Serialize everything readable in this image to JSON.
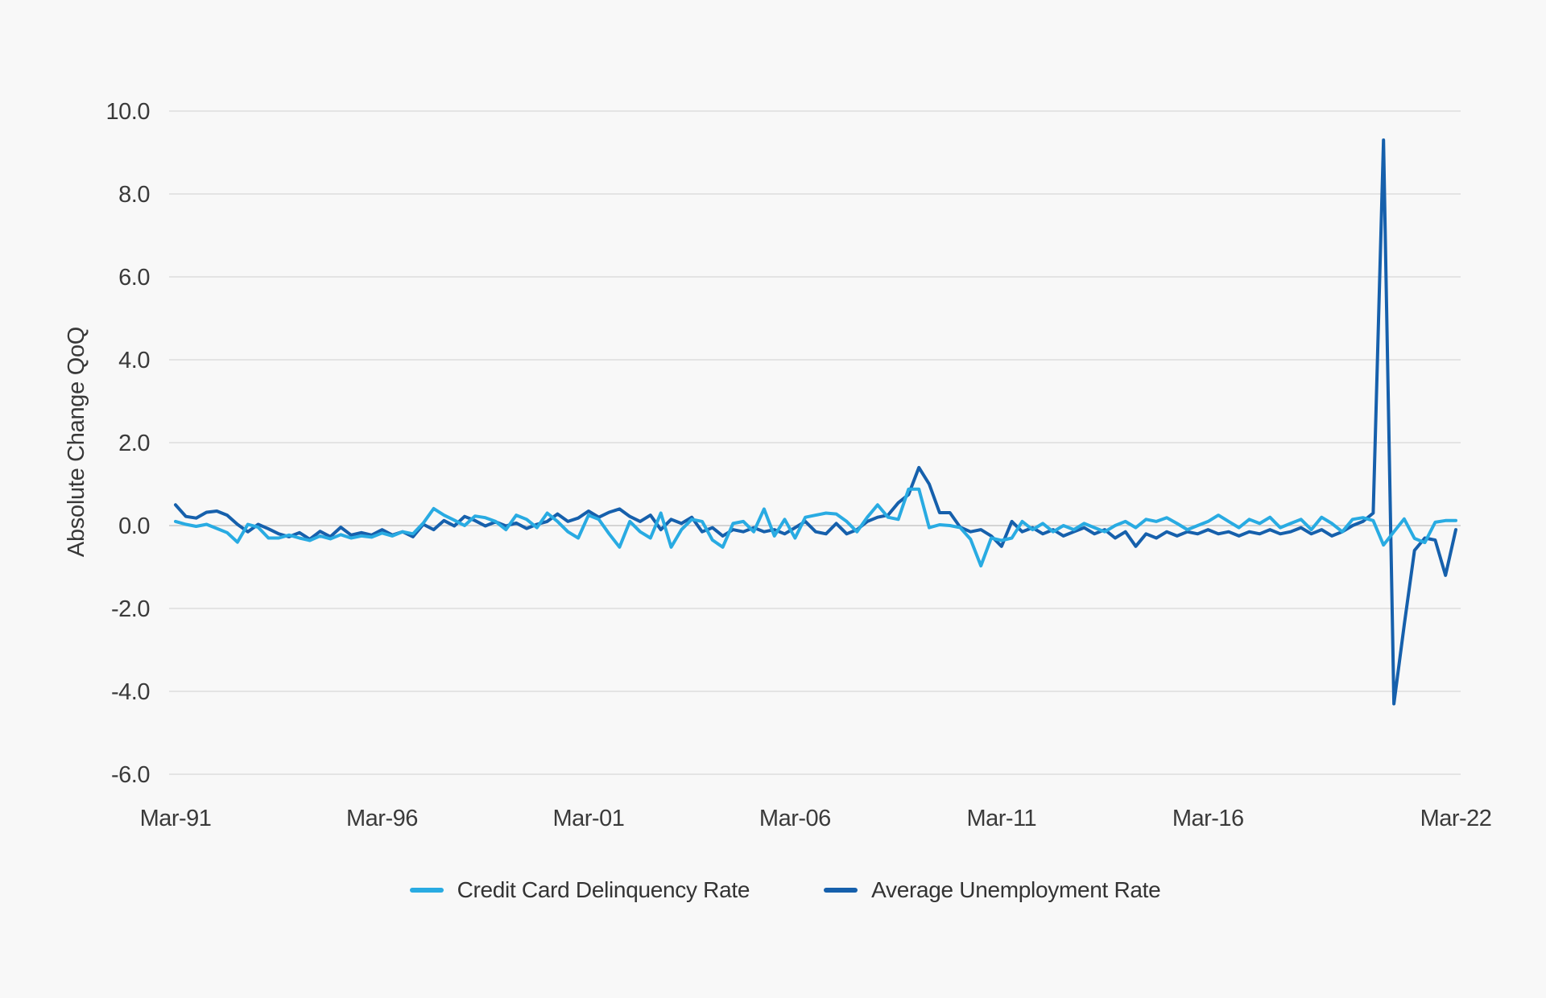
{
  "chart_data": {
    "type": "line",
    "title": "",
    "ylabel": "Absolute Change QoQ",
    "xlabel": "",
    "x_frequency": "quarterly",
    "x_start": "Mar-91",
    "x_end": "Mar-22",
    "x_points": 125,
    "x_ticks": [
      {
        "index": 0,
        "label": "Mar-91"
      },
      {
        "index": 20,
        "label": "Mar-96"
      },
      {
        "index": 40,
        "label": "Mar-01"
      },
      {
        "index": 60,
        "label": "Mar-06"
      },
      {
        "index": 80,
        "label": "Mar-11"
      },
      {
        "index": 100,
        "label": "Mar-16"
      },
      {
        "index": 124,
        "label": "Mar-22"
      }
    ],
    "y_ticks": [
      {
        "label": "10.0",
        "value": 10
      },
      {
        "label": "8.0",
        "value": 8
      },
      {
        "label": "6.0",
        "value": 6
      },
      {
        "label": "4.0",
        "value": 4
      },
      {
        "label": "2.0",
        "value": 2
      },
      {
        "label": "0.0",
        "value": 0
      },
      {
        "label": "-2.0",
        "value": -2
      },
      {
        "label": "-4.0",
        "value": -4
      },
      {
        "label": "-6.0",
        "value": -6
      }
    ],
    "ylim": [
      -6,
      10
    ],
    "grid": "horizontal-only",
    "legend_position": "bottom-center",
    "colors": {
      "background": "#F8F8F8",
      "gridline": "#DDDDDD",
      "zero_line": "#C8C8C8",
      "text": "#3A3A3A"
    },
    "series": [
      {
        "name": "Credit Card Delinquency Rate",
        "color": "#29ABE2",
        "values": [
          0.1,
          0.03,
          -0.02,
          0.03,
          -0.07,
          -0.17,
          -0.4,
          0.03,
          -0.04,
          -0.3,
          -0.3,
          -0.23,
          -0.3,
          -0.36,
          -0.25,
          -0.32,
          -0.22,
          -0.3,
          -0.25,
          -0.28,
          -0.18,
          -0.25,
          -0.15,
          -0.2,
          0.06,
          0.41,
          0.25,
          0.13,
          0.0,
          0.23,
          0.19,
          0.1,
          -0.1,
          0.25,
          0.15,
          -0.05,
          0.3,
          0.1,
          -0.15,
          -0.3,
          0.25,
          0.15,
          -0.2,
          -0.52,
          0.1,
          -0.15,
          -0.3,
          0.3,
          -0.52,
          -0.1,
          0.15,
          0.1,
          -0.35,
          -0.52,
          0.05,
          0.1,
          -0.15,
          0.4,
          -0.25,
          0.15,
          -0.3,
          0.2,
          0.25,
          0.3,
          0.28,
          0.1,
          -0.15,
          0.2,
          0.5,
          0.2,
          0.15,
          0.88,
          0.88,
          -0.05,
          0.02,
          0.0,
          -0.05,
          -0.33,
          -0.97,
          -0.3,
          -0.36,
          -0.3,
          0.1,
          -0.1,
          0.05,
          -0.15,
          0.0,
          -0.1,
          0.05,
          -0.05,
          -0.15,
          0.0,
          0.1,
          -0.05,
          0.15,
          0.1,
          0.19,
          0.05,
          -0.1,
          0.0,
          0.1,
          0.25,
          0.1,
          -0.05,
          0.15,
          0.05,
          0.2,
          -0.05,
          0.05,
          0.15,
          -0.1,
          0.2,
          0.05,
          -0.15,
          0.15,
          0.19,
          0.12,
          -0.47,
          -0.15,
          0.16,
          -0.31,
          -0.41,
          0.08,
          0.12,
          0.12
        ]
      },
      {
        "name": "Average Unemployment Rate",
        "color": "#1660AC",
        "values": [
          0.5,
          0.22,
          0.18,
          0.32,
          0.35,
          0.25,
          0.03,
          -0.15,
          0.03,
          -0.08,
          -0.2,
          -0.27,
          -0.17,
          -0.33,
          -0.14,
          -0.27,
          -0.04,
          -0.23,
          -0.17,
          -0.23,
          -0.1,
          -0.23,
          -0.15,
          -0.27,
          0.03,
          -0.1,
          0.12,
          -0.01,
          0.22,
          0.12,
          -0.01,
          0.09,
          -0.01,
          0.06,
          -0.07,
          0.03,
          0.1,
          0.28,
          0.1,
          0.18,
          0.35,
          0.2,
          0.32,
          0.4,
          0.22,
          0.1,
          0.25,
          -0.1,
          0.15,
          0.05,
          0.2,
          -0.15,
          -0.05,
          -0.25,
          -0.1,
          -0.15,
          -0.05,
          -0.15,
          -0.1,
          -0.2,
          -0.05,
          0.1,
          -0.15,
          -0.2,
          0.05,
          -0.2,
          -0.1,
          0.1,
          0.2,
          0.25,
          0.55,
          0.75,
          1.4,
          1.0,
          0.31,
          0.31,
          -0.04,
          -0.15,
          -0.1,
          -0.25,
          -0.5,
          0.1,
          -0.15,
          -0.05,
          -0.2,
          -0.1,
          -0.25,
          -0.15,
          -0.05,
          -0.2,
          -0.1,
          -0.3,
          -0.15,
          -0.5,
          -0.2,
          -0.3,
          -0.15,
          -0.25,
          -0.15,
          -0.2,
          -0.1,
          -0.2,
          -0.15,
          -0.25,
          -0.15,
          -0.2,
          -0.1,
          -0.2,
          -0.15,
          -0.05,
          -0.2,
          -0.1,
          -0.25,
          -0.15,
          0.0,
          0.1,
          0.3,
          9.3,
          -4.3,
          -2.4,
          -0.6,
          -0.3,
          -0.35,
          -1.2,
          -0.1
        ]
      }
    ]
  }
}
